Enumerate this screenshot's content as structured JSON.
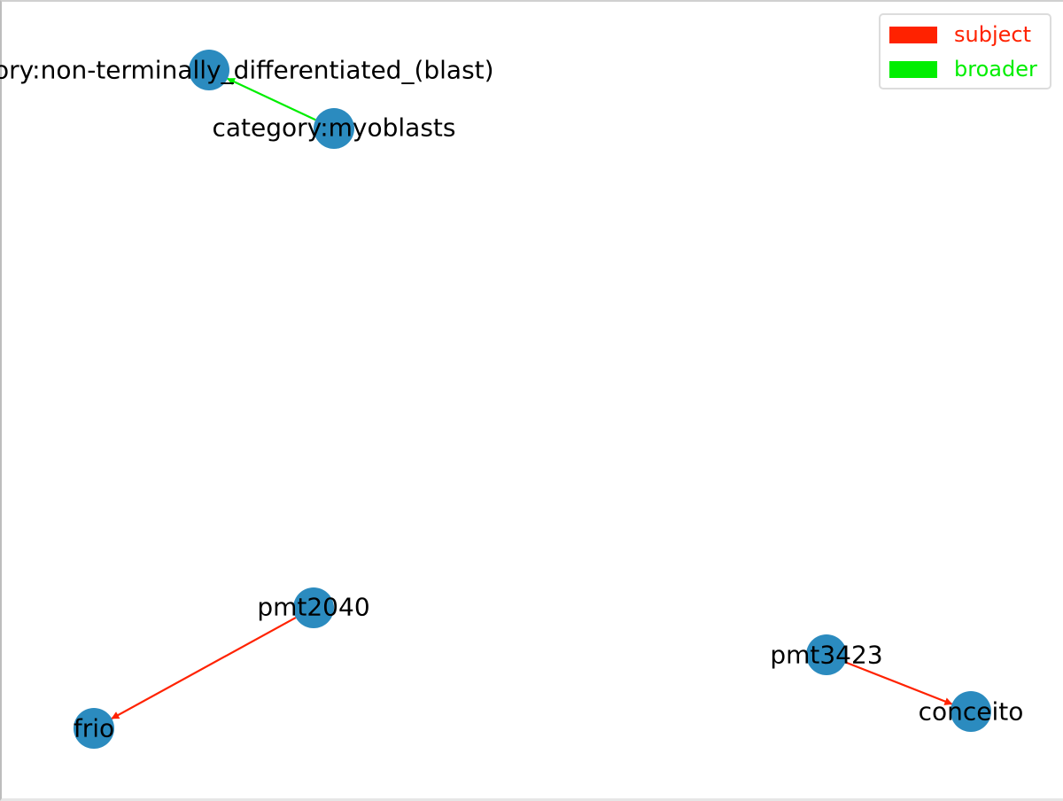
{
  "colors": {
    "node_fill": "#2b8bbf",
    "subject": "#ff2200",
    "broader": "#00ee00"
  },
  "legend": {
    "items": [
      {
        "label": "subject",
        "color": "#ff2200"
      },
      {
        "label": "broader",
        "color": "#00ee00"
      }
    ]
  },
  "graph": {
    "nodes": [
      {
        "id": "blast",
        "label": "category:non-terminally_differentiated_(blast)"
      },
      {
        "id": "myoblasts",
        "label": "category:myoblasts"
      },
      {
        "id": "pmt2040",
        "label": "pmt2040"
      },
      {
        "id": "frio",
        "label": "frio"
      },
      {
        "id": "pmt3423",
        "label": "pmt3423"
      },
      {
        "id": "conceito",
        "label": "conceito"
      }
    ],
    "edges": [
      {
        "source": "myoblasts",
        "target": "blast",
        "relation": "broader"
      },
      {
        "source": "pmt2040",
        "target": "frio",
        "relation": "subject"
      },
      {
        "source": "pmt3423",
        "target": "conceito",
        "relation": "subject"
      }
    ]
  }
}
